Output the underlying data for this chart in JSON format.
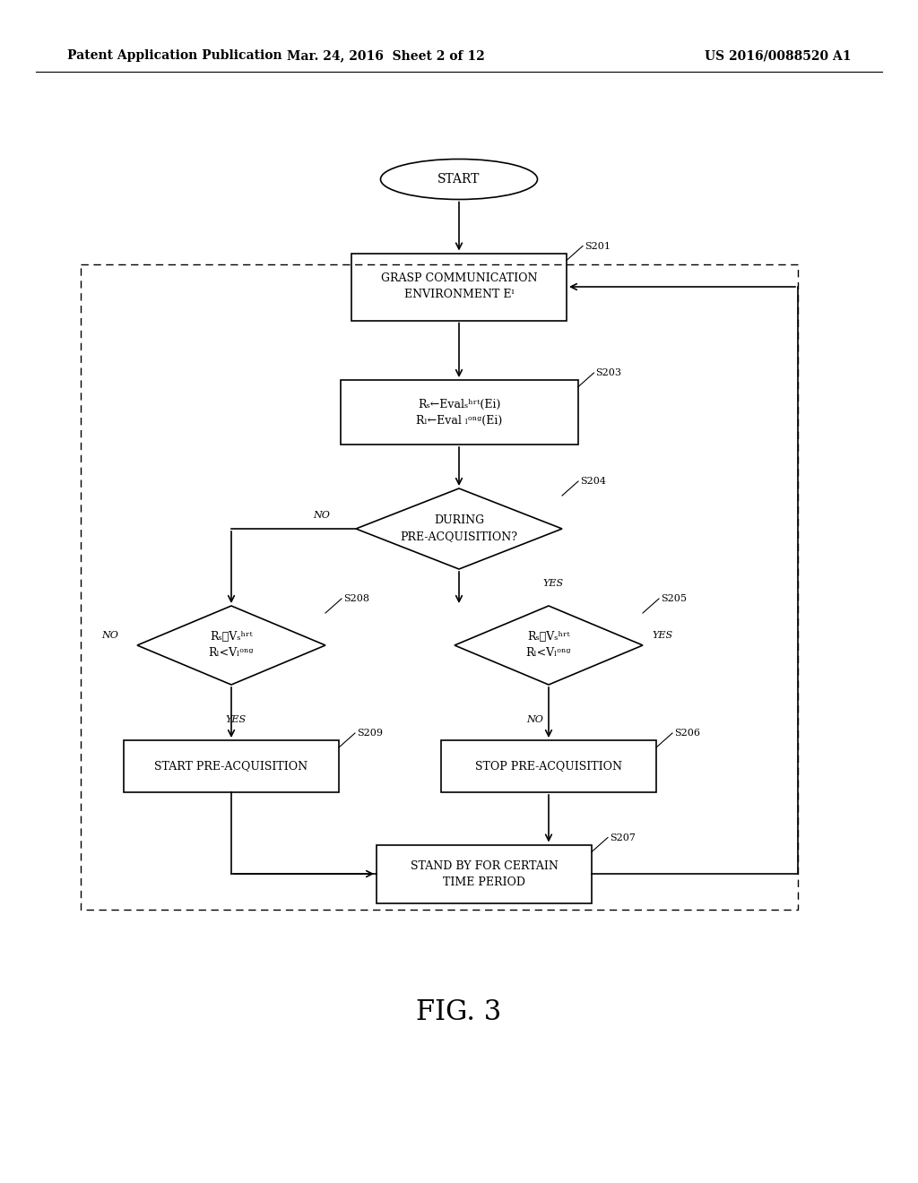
{
  "bg_color": "#ffffff",
  "header_left": "Patent Application Publication",
  "header_center": "Mar. 24, 2016  Sheet 2 of 12",
  "header_right": "US 2016/0088520 A1",
  "fig_label": "FIG. 3",
  "lw": 1.2,
  "arrow_lw": 1.2,
  "font_size_box": 9,
  "font_size_label": 8,
  "font_size_yesno": 8,
  "font_size_start": 10,
  "font_size_fig": 22
}
